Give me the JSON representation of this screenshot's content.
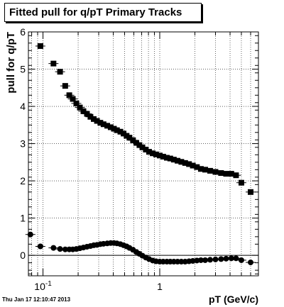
{
  "chart_data": {
    "type": "scatter",
    "title": "Fitted pull for q/pT  Primary Tracks",
    "xlabel": "pT (GeV/c)",
    "ylabel": "pull for q/pT",
    "xscale": "log",
    "xlim": [
      0.075,
      7.0
    ],
    "ylim": [
      -0.55,
      6.0
    ],
    "x_tick_labels": [
      {
        "value": 0.1,
        "base": "10",
        "exp": "-1"
      },
      {
        "value": 1,
        "base": "1",
        "exp": ""
      }
    ],
    "y_ticks": [
      0,
      1,
      2,
      3,
      4,
      5,
      6
    ],
    "grid": true,
    "zero_line": true,
    "timestamp": "Thu Jan 17 12:10:47 2013",
    "series": [
      {
        "marker": "square",
        "points": [
          [
            0.095,
            5.62
          ],
          [
            0.123,
            5.15
          ],
          [
            0.14,
            4.93
          ],
          [
            0.155,
            4.55
          ],
          [
            0.168,
            4.3
          ],
          [
            0.18,
            4.2
          ],
          [
            0.193,
            4.08
          ],
          [
            0.207,
            3.97
          ],
          [
            0.222,
            3.87
          ],
          [
            0.238,
            3.8
          ],
          [
            0.255,
            3.72
          ],
          [
            0.272,
            3.66
          ],
          [
            0.29,
            3.61
          ],
          [
            0.31,
            3.56
          ],
          [
            0.33,
            3.52
          ],
          [
            0.355,
            3.48
          ],
          [
            0.38,
            3.44
          ],
          [
            0.405,
            3.4
          ],
          [
            0.43,
            3.36
          ],
          [
            0.46,
            3.32
          ],
          [
            0.49,
            3.27
          ],
          [
            0.52,
            3.21
          ],
          [
            0.55,
            3.16
          ],
          [
            0.59,
            3.09
          ],
          [
            0.63,
            3.02
          ],
          [
            0.67,
            2.96
          ],
          [
            0.71,
            2.9
          ],
          [
            0.76,
            2.84
          ],
          [
            0.81,
            2.78
          ],
          [
            0.87,
            2.74
          ],
          [
            0.93,
            2.71
          ],
          [
            1.0,
            2.68
          ],
          [
            1.07,
            2.65
          ],
          [
            1.15,
            2.62
          ],
          [
            1.23,
            2.6
          ],
          [
            1.32,
            2.57
          ],
          [
            1.42,
            2.54
          ],
          [
            1.53,
            2.51
          ],
          [
            1.65,
            2.48
          ],
          [
            1.78,
            2.45
          ],
          [
            1.92,
            2.41
          ],
          [
            2.08,
            2.37
          ],
          [
            2.25,
            2.32
          ],
          [
            2.45,
            2.3
          ],
          [
            2.7,
            2.27
          ],
          [
            3.0,
            2.24
          ],
          [
            3.35,
            2.21
          ],
          [
            3.7,
            2.19
          ],
          [
            4.1,
            2.19
          ],
          [
            4.5,
            2.15
          ],
          [
            5.0,
            1.95
          ],
          [
            6.0,
            1.7
          ]
        ]
      },
      {
        "marker": "circle",
        "points": [
          [
            0.078,
            0.56
          ],
          [
            0.095,
            0.24
          ],
          [
            0.123,
            0.2
          ],
          [
            0.14,
            0.17
          ],
          [
            0.155,
            0.16
          ],
          [
            0.168,
            0.16
          ],
          [
            0.18,
            0.16
          ],
          [
            0.193,
            0.17
          ],
          [
            0.207,
            0.19
          ],
          [
            0.222,
            0.21
          ],
          [
            0.238,
            0.23
          ],
          [
            0.255,
            0.25
          ],
          [
            0.272,
            0.27
          ],
          [
            0.29,
            0.28
          ],
          [
            0.31,
            0.3
          ],
          [
            0.33,
            0.31
          ],
          [
            0.355,
            0.32
          ],
          [
            0.38,
            0.33
          ],
          [
            0.405,
            0.33
          ],
          [
            0.43,
            0.32
          ],
          [
            0.46,
            0.3
          ],
          [
            0.49,
            0.27
          ],
          [
            0.52,
            0.24
          ],
          [
            0.55,
            0.2
          ],
          [
            0.59,
            0.15
          ],
          [
            0.63,
            0.09
          ],
          [
            0.67,
            0.04
          ],
          [
            0.71,
            -0.01
          ],
          [
            0.76,
            -0.06
          ],
          [
            0.81,
            -0.1
          ],
          [
            0.87,
            -0.14
          ],
          [
            0.93,
            -0.16
          ],
          [
            1.0,
            -0.17
          ],
          [
            1.07,
            -0.17
          ],
          [
            1.15,
            -0.17
          ],
          [
            1.23,
            -0.17
          ],
          [
            1.32,
            -0.17
          ],
          [
            1.42,
            -0.17
          ],
          [
            1.53,
            -0.17
          ],
          [
            1.65,
            -0.17
          ],
          [
            1.78,
            -0.16
          ],
          [
            1.92,
            -0.15
          ],
          [
            2.08,
            -0.14
          ],
          [
            2.25,
            -0.13
          ],
          [
            2.45,
            -0.13
          ],
          [
            2.7,
            -0.12
          ],
          [
            3.0,
            -0.11
          ],
          [
            3.35,
            -0.1
          ],
          [
            3.7,
            -0.09
          ],
          [
            4.1,
            -0.08
          ],
          [
            4.5,
            -0.08
          ],
          [
            5.0,
            -0.13
          ],
          [
            6.0,
            -0.19
          ]
        ]
      }
    ]
  }
}
